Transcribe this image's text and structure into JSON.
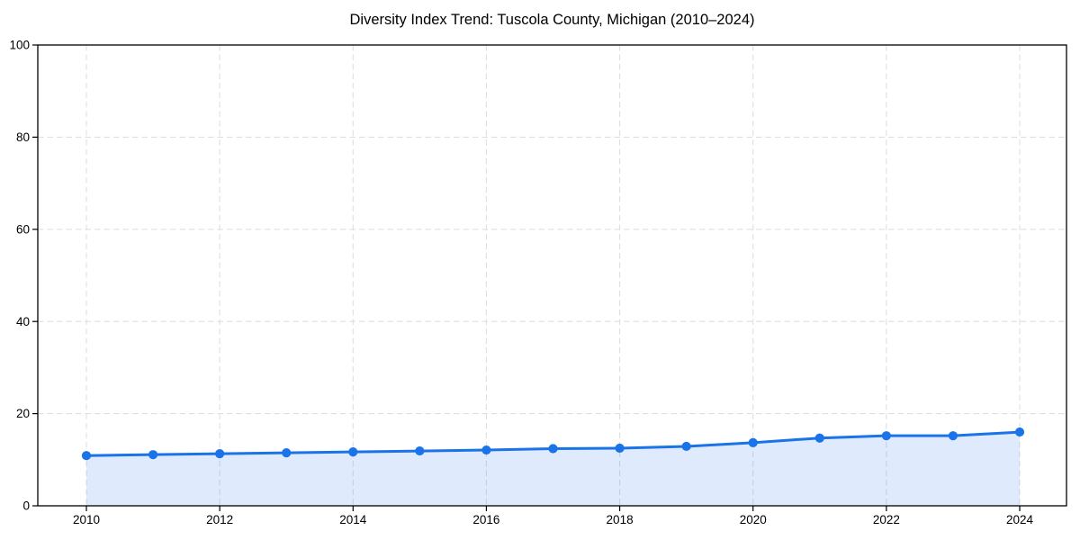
{
  "chart_data": {
    "type": "area",
    "title": "Diversity Index Trend: Tuscola County, Michigan (2010–2024)",
    "x": [
      2010,
      2011,
      2012,
      2013,
      2014,
      2015,
      2016,
      2017,
      2018,
      2019,
      2020,
      2021,
      2022,
      2023,
      2024
    ],
    "series": [
      {
        "name": "Diversity Index",
        "values": [
          10.9,
          11.1,
          11.3,
          11.5,
          11.7,
          11.9,
          12.1,
          12.4,
          12.5,
          12.9,
          13.7,
          14.7,
          15.2,
          15.2,
          16.0
        ]
      }
    ],
    "xlabel": "",
    "ylabel": "",
    "ylim": [
      0,
      100
    ],
    "yticks": [
      0,
      20,
      40,
      60,
      80,
      100
    ],
    "xticks": [
      2010,
      2012,
      2014,
      2016,
      2018,
      2020,
      2022,
      2024
    ],
    "grid": true,
    "grid_style": "dashed",
    "legend_position": "none",
    "colors": {
      "line": "#1a73e8",
      "marker": "#1a73e8",
      "fill": "rgba(26,115,232,0.14)",
      "grid": "#dfdfdf",
      "frame": "#000000",
      "tick_text": "#000000",
      "background": "#ffffff"
    }
  }
}
